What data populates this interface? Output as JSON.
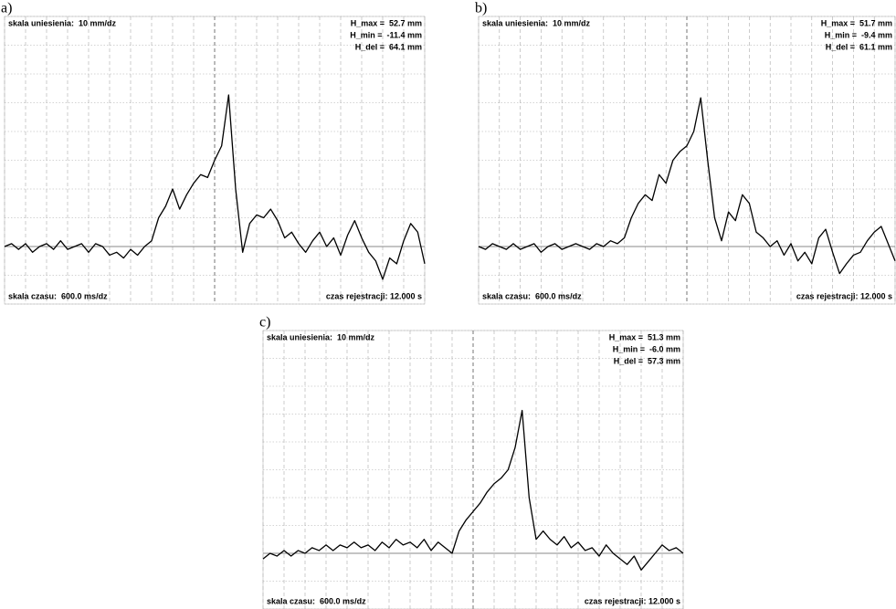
{
  "chart_data": [
    {
      "type": "line",
      "label": "a)",
      "annotations": {
        "top_left": "skala uniesienia:  10 mm/dz",
        "top_right": [
          "H_max =  52.7 mm",
          "H_min =  -11.4 mm",
          "H_del =  64.1 mm"
        ],
        "bottom_left": "skala czasu:  600.0 ms/dz",
        "bottom_right": "czas rejestracji: 12.000 s"
      },
      "x": [
        0,
        0.2,
        0.4,
        0.6,
        0.8,
        1,
        1.2,
        1.4,
        1.6,
        1.8,
        2,
        2.2,
        2.4,
        2.6,
        2.8,
        3,
        3.2,
        3.4,
        3.6,
        3.8,
        4,
        4.2,
        4.4,
        4.6,
        4.8,
        5,
        5.2,
        5.4,
        5.6,
        5.8,
        6,
        6.2,
        6.4,
        6.6,
        6.8,
        7,
        7.2,
        7.4,
        7.6,
        7.8,
        8,
        8.2,
        8.4,
        8.6,
        8.8,
        9,
        9.2,
        9.4,
        9.6,
        9.8,
        10,
        10.2,
        10.4,
        10.6,
        10.8,
        11,
        11.2,
        11.4,
        11.6,
        11.8,
        12
      ],
      "values": [
        0,
        1,
        -1,
        1,
        -2,
        0,
        1,
        -1,
        2,
        -1,
        0,
        1,
        -2,
        1,
        0,
        -3,
        -2,
        -4,
        -1,
        -3,
        0,
        2,
        10,
        14,
        20,
        13,
        18,
        22,
        25,
        24,
        30,
        35,
        52.7,
        20,
        -2,
        8,
        11,
        10,
        13,
        9,
        3,
        5,
        1,
        -2,
        2,
        5,
        0,
        3,
        -3,
        4,
        9,
        3,
        -2,
        -5,
        -11.4,
        -4,
        -6,
        2,
        8,
        5,
        -6
      ],
      "color": "#000000",
      "xlim": [
        0,
        12
      ],
      "xticks": [
        0,
        0.6,
        1.2,
        1.8,
        2.4,
        3,
        3.6,
        4.2,
        4.8,
        5.4,
        6,
        6.6,
        7.2,
        7.8,
        8.4,
        9,
        9.6,
        10.2,
        10.8,
        11.4,
        12
      ],
      "ylim": [
        -20,
        80
      ],
      "yticks": [
        -20,
        -10,
        0,
        10,
        20,
        30,
        40,
        50,
        60,
        70,
        80
      ],
      "grid": true
    },
    {
      "type": "line",
      "label": "b)",
      "annotations": {
        "top_left": "skala uniesienia:  10 mm/dz",
        "top_right": [
          "H_max =  51.7 mm",
          "H_min =  -9.4 mm",
          "H_del =  61.1 mm"
        ],
        "bottom_left": "skala czasu:  600.0 ms/dz",
        "bottom_right": "czas rejestracji: 12.000 s"
      },
      "x": [
        0,
        0.2,
        0.4,
        0.6,
        0.8,
        1,
        1.2,
        1.4,
        1.6,
        1.8,
        2,
        2.2,
        2.4,
        2.6,
        2.8,
        3,
        3.2,
        3.4,
        3.6,
        3.8,
        4,
        4.2,
        4.4,
        4.6,
        4.8,
        5,
        5.2,
        5.4,
        5.6,
        5.8,
        6,
        6.2,
        6.4,
        6.6,
        6.8,
        7,
        7.2,
        7.4,
        7.6,
        7.8,
        8,
        8.2,
        8.4,
        8.6,
        8.8,
        9,
        9.2,
        9.4,
        9.6,
        9.8,
        10,
        10.2,
        10.4,
        10.6,
        10.8,
        11,
        11.2,
        11.4,
        11.6,
        11.8,
        12
      ],
      "values": [
        0,
        -1,
        1,
        0,
        -1,
        1,
        -1,
        0,
        1,
        -2,
        0,
        1,
        -1,
        0,
        1,
        0,
        -1,
        1,
        0,
        2,
        1,
        3,
        10,
        15,
        18,
        16,
        25,
        22,
        30,
        33,
        35,
        40,
        51.7,
        30,
        10,
        2,
        12,
        9,
        18,
        15,
        5,
        3,
        0,
        2,
        -3,
        1,
        -5,
        -2,
        -6,
        3,
        6,
        -2,
        -9.4,
        -6,
        -3,
        -2,
        2,
        5,
        7,
        1,
        -5
      ],
      "color": "#000000",
      "xlim": [
        0,
        12
      ],
      "xticks": [
        0,
        0.6,
        1.2,
        1.8,
        2.4,
        3,
        3.6,
        4.2,
        4.8,
        5.4,
        6,
        6.6,
        7.2,
        7.8,
        8.4,
        9,
        9.6,
        10.2,
        10.8,
        11.4,
        12
      ],
      "ylim": [
        -20,
        80
      ],
      "yticks": [
        -20,
        -10,
        0,
        10,
        20,
        30,
        40,
        50,
        60,
        70,
        80
      ],
      "grid": true
    },
    {
      "type": "line",
      "label": "c)",
      "annotations": {
        "top_left": "skala uniesienia:  10 mm/dz",
        "top_right": [
          "H_max =  51.3 mm",
          "H_min =  -6.0 mm",
          "H_del =  57.3 mm"
        ],
        "bottom_left": "skala czasu:  600.0 ms/dz",
        "bottom_right": "czas rejestracji: 12.000 s"
      },
      "x": [
        0,
        0.2,
        0.4,
        0.6,
        0.8,
        1,
        1.2,
        1.4,
        1.6,
        1.8,
        2,
        2.2,
        2.4,
        2.6,
        2.8,
        3,
        3.2,
        3.4,
        3.6,
        3.8,
        4,
        4.2,
        4.4,
        4.6,
        4.8,
        5,
        5.2,
        5.4,
        5.6,
        5.8,
        6,
        6.2,
        6.4,
        6.6,
        6.8,
        7,
        7.2,
        7.4,
        7.6,
        7.8,
        8,
        8.2,
        8.4,
        8.6,
        8.8,
        9,
        9.2,
        9.4,
        9.6,
        9.8,
        10,
        10.2,
        10.4,
        10.6,
        10.8,
        11,
        11.2,
        11.4,
        11.6,
        11.8,
        12
      ],
      "values": [
        -2,
        0,
        -1,
        1,
        -1,
        1,
        0,
        2,
        1,
        3,
        1,
        3,
        2,
        4,
        2,
        3,
        1,
        4,
        2,
        5,
        3,
        4,
        2,
        5,
        1,
        4,
        2,
        0,
        8,
        12,
        15,
        18,
        22,
        25,
        27,
        30,
        38,
        51.3,
        20,
        5,
        8,
        5,
        3,
        6,
        2,
        4,
        1,
        2,
        -1,
        3,
        0,
        -2,
        -4,
        -1,
        -6,
        -3,
        0,
        3,
        1,
        2,
        0
      ],
      "color": "#000000",
      "xlim": [
        0,
        12
      ],
      "xticks": [
        0,
        0.6,
        1.2,
        1.8,
        2.4,
        3,
        3.6,
        4.2,
        4.8,
        5.4,
        6,
        6.6,
        7.2,
        7.8,
        8.4,
        9,
        9.6,
        10.2,
        10.8,
        11.4,
        12
      ],
      "ylim": [
        -20,
        80
      ],
      "yticks": [
        -20,
        -10,
        0,
        10,
        20,
        30,
        40,
        50,
        60,
        70,
        80
      ],
      "grid": true
    }
  ]
}
